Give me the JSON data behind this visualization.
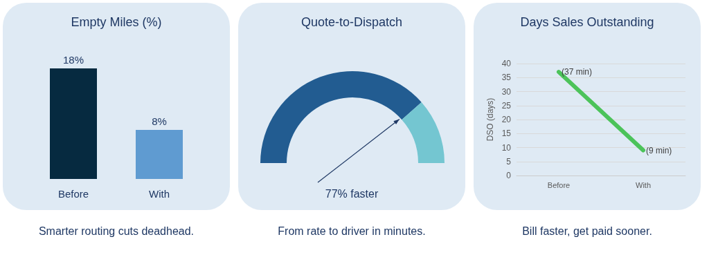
{
  "chart_data": [
    {
      "type": "bar",
      "title": "Empty Miles (%)",
      "subtitle": "Smarter routing cuts deadhead.",
      "categories": [
        "Before",
        "With"
      ],
      "values": [
        18,
        8
      ],
      "colors": [
        "#062a40",
        "#5f9bd1"
      ],
      "value_labels": [
        "18%",
        "8%"
      ],
      "tick_labels": "x"
    },
    {
      "type": "donut",
      "title": "Quote-to-Dispatch",
      "subtitle": "From rate to driver in minutes.",
      "categories": [
        null,
        null
      ],
      "values": [
        77,
        23
      ],
      "colors": [
        "#225c91",
        "#74c6d1"
      ],
      "annotations": [
        "77% faster"
      ]
    },
    {
      "type": "line",
      "title": "Days Sales Outstanding",
      "subtitle": "Bill faster, get paid sooner.",
      "categories": [
        "Before",
        "With"
      ],
      "ylabel": "DSO (days)",
      "series": [
        {
          "color": "#4cc35a",
          "values": [
            37,
            9
          ],
          "value_labels": [
            "(37 min)",
            "(9 min)"
          ]
        }
      ],
      "ylim": [
        0,
        40
      ],
      "yticks": [
        0,
        5,
        10,
        15,
        20,
        25,
        30,
        35,
        40
      ],
      "grid": "y",
      "marker": "none"
    }
  ]
}
